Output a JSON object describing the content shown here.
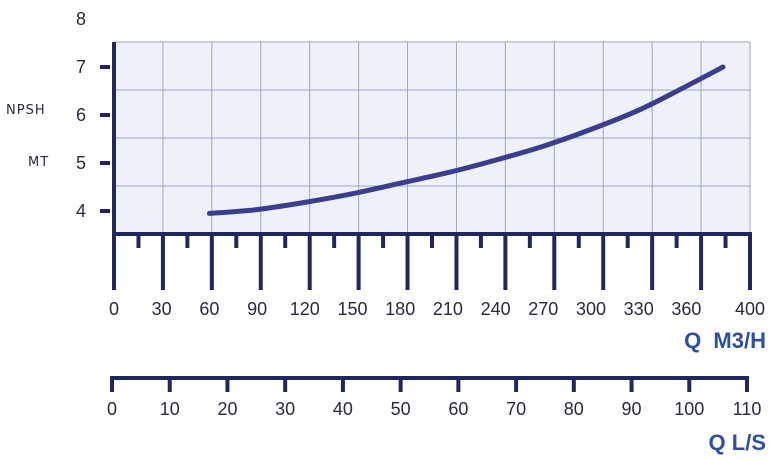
{
  "chart_data": {
    "type": "line",
    "ylabel_lines": [
      "NPSH",
      "MT"
    ],
    "yticks": [
      4,
      5,
      6,
      7,
      8
    ],
    "ylim": [
      3.5,
      8
    ],
    "x_m3h": {
      "ticks": [
        0,
        30,
        60,
        90,
        120,
        150,
        180,
        210,
        240,
        270,
        300,
        330,
        360,
        400
      ],
      "unit_label": "Q  M3/H",
      "xlim": [
        0,
        400
      ]
    },
    "x_ls": {
      "ticks": [
        0,
        10,
        20,
        30,
        40,
        50,
        60,
        70,
        80,
        90,
        100,
        110
      ],
      "unit_label": "Q L/S",
      "xlim": [
        0,
        110
      ]
    },
    "grid": true,
    "series": [
      {
        "x": [
          60,
          90,
          120,
          150,
          180,
          210,
          240,
          270,
          300,
          330,
          360,
          383
        ],
        "y": [
          3.95,
          4.03,
          4.18,
          4.36,
          4.58,
          4.8,
          5.06,
          5.35,
          5.7,
          6.1,
          6.6,
          7.0
        ]
      }
    ],
    "colors": {
      "curve": "#3b3d8f",
      "axis": "#23265e",
      "grid": "#9aa6c8",
      "plot_bg": "#eef1f8",
      "unit_text": "#2e4fa2"
    }
  }
}
